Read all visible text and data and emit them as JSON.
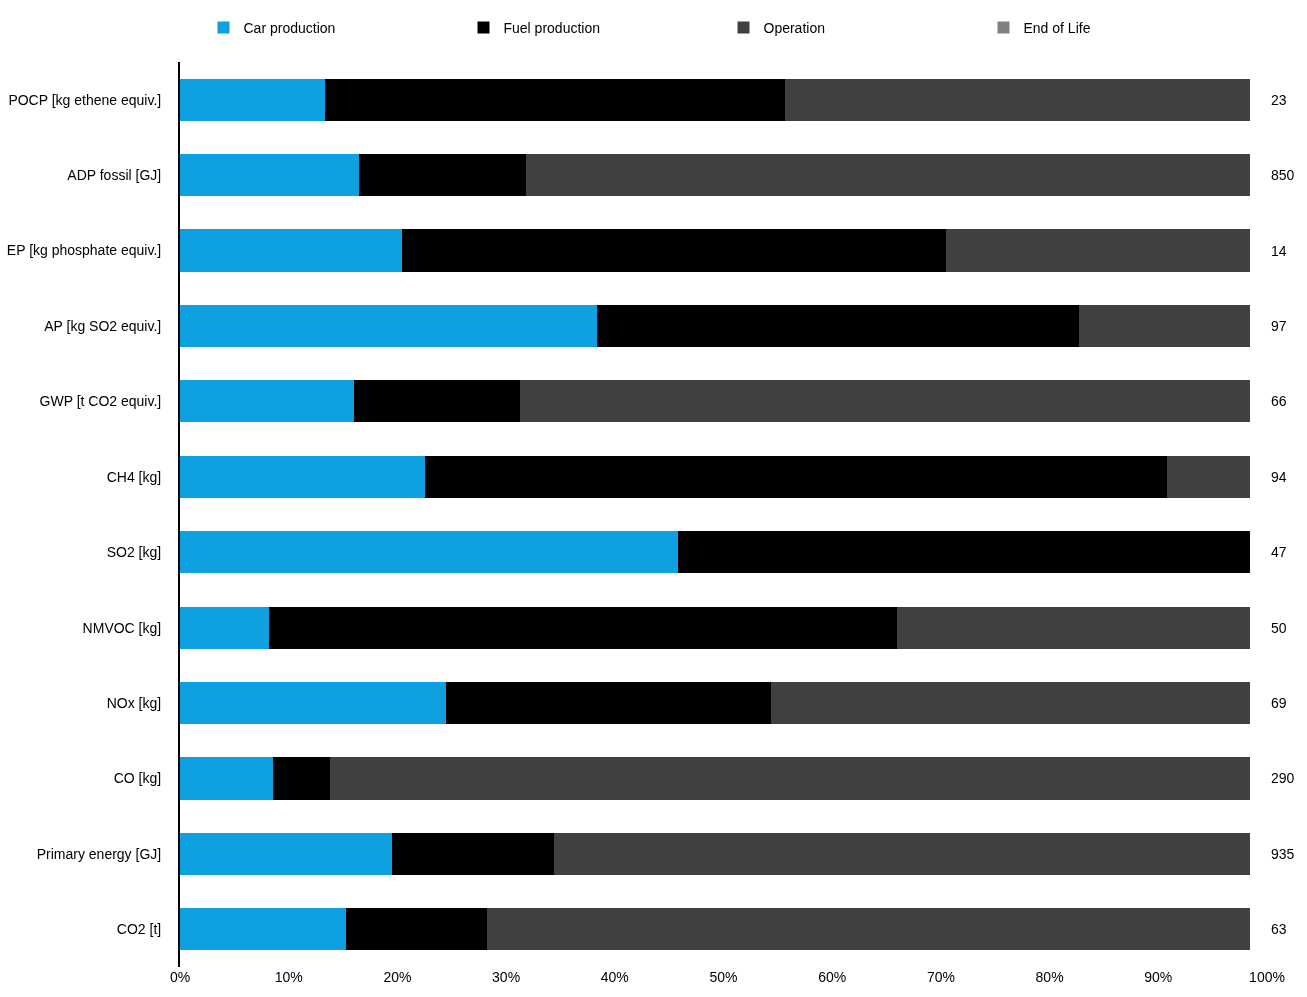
{
  "chart_data": {
    "type": "bar",
    "orientation": "horizontal",
    "stacked": true,
    "categories": [
      "POCP [kg ethene equiv.]",
      "ADP fossil [GJ]",
      "EP [kg phosphate equiv.]",
      "AP [kg SO2 equiv.]",
      "GWP [t CO2 equiv.]",
      "CH4 [kg]",
      "SO2 [kg]",
      "NMVOC [kg]",
      "NOx [kg]",
      "CO [kg]",
      "Primary energy [GJ]",
      "CO2 [t]"
    ],
    "series": [
      {
        "name": "Car production",
        "color": "#0ea0e0",
        "values": [
          13.3,
          16.5,
          20.4,
          38.4,
          16.0,
          22.5,
          45.8,
          8.2,
          24.5,
          8.6,
          19.5,
          15.3
        ]
      },
      {
        "name": "Fuel production",
        "color": "#000000",
        "values": [
          42.4,
          15.3,
          50.1,
          44.3,
          15.3,
          68.3,
          52.6,
          57.8,
          29.9,
          5.2,
          14.9,
          12.9
        ]
      },
      {
        "name": "Operation",
        "color": "#404040",
        "values": [
          42.7,
          66.6,
          27.9,
          15.7,
          67.1,
          7.6,
          0,
          32.4,
          44.0,
          84.6,
          64.0,
          70.2
        ]
      },
      {
        "name": "End of Life",
        "color": "#808080",
        "values": [
          0,
          0,
          0,
          0,
          0,
          0,
          0,
          0,
          0,
          0,
          0,
          0
        ]
      }
    ],
    "annotations": [
      "23",
      "850",
      "14",
      "97",
      "66",
      "94",
      "47",
      "50",
      "69",
      "290",
      "935",
      "63"
    ],
    "xlim": [
      0,
      100
    ],
    "xticks": [
      {
        "value": 0,
        "label": "0%"
      },
      {
        "value": 10,
        "label": "10%"
      },
      {
        "value": 20,
        "label": "20%"
      },
      {
        "value": 30,
        "label": "30%"
      },
      {
        "value": 40,
        "label": "40%"
      },
      {
        "value": 50,
        "label": "50%"
      },
      {
        "value": 60,
        "label": "60%"
      },
      {
        "value": 70,
        "label": "70%"
      },
      {
        "value": 80,
        "label": "80%"
      },
      {
        "value": 90,
        "label": "90%"
      },
      {
        "value": 100,
        "label": "100%"
      }
    ],
    "grid": false,
    "legend": "top"
  }
}
